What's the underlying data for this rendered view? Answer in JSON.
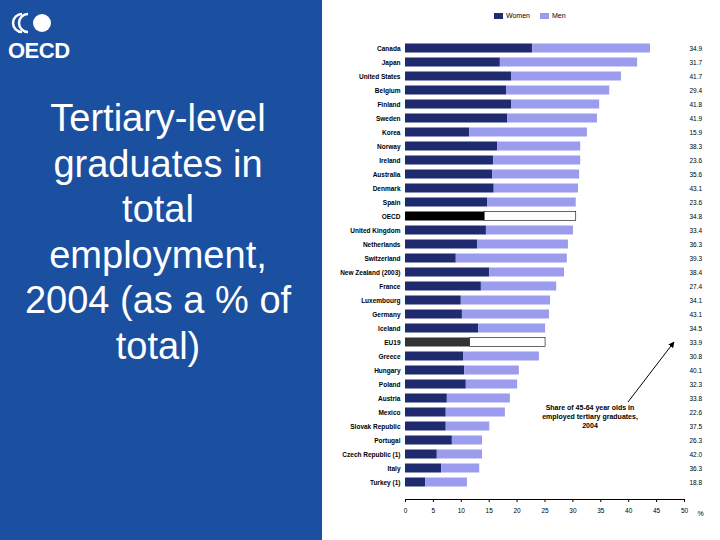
{
  "slide": {
    "logo": "OECD"
  },
  "chart_data": {
    "type": "bar",
    "orientation": "horizontal",
    "stacked": true,
    "title": "Tertiary-level graduates in total employment, 2004 (as a % of total)",
    "categories": [
      "Canada",
      "Japan",
      "United States",
      "Belgium",
      "Finland",
      "Sweden",
      "Korea",
      "Norway",
      "Ireland",
      "Australia",
      "Denmark",
      "Spain",
      "OECD",
      "United Kingdom",
      "Netherlands",
      "Switzerland",
      "New Zealand (2003)",
      "France",
      "Luxembourg",
      "Germany",
      "Iceland",
      "EU19",
      "Greece",
      "Hungary",
      "Poland",
      "Austria",
      "Mexico",
      "Slovak Republic",
      "Portugal",
      "Czech Republic (1)",
      "Italy",
      "Turkey (1)"
    ],
    "series": [
      {
        "name": "Women",
        "color": "#1f2b6e",
        "colors": [
          "#1f2b6e",
          "#1f2b6e",
          "#1f2b6e",
          "#1f2b6e",
          "#1f2b6e",
          "#1f2b6e",
          "#1f2b6e",
          "#1f2b6e",
          "#1f2b6e",
          "#1f2b6e",
          "#1f2b6e",
          "#1f2b6e",
          "#000000",
          "#1f2b6e",
          "#1f2b6e",
          "#1f2b6e",
          "#1f2b6e",
          "#1f2b6e",
          "#1f2b6e",
          "#1f2b6e",
          "#1f2b6e",
          "#333333",
          "#1f2b6e",
          "#1f2b6e",
          "#1f2b6e",
          "#1f2b6e",
          "#1f2b6e",
          "#1f2b6e",
          "#1f2b6e",
          "#1f2b6e",
          "#1f2b6e",
          "#1f2b6e"
        ],
        "values": [
          22.8,
          17.0,
          19.0,
          18.1,
          19.0,
          18.3,
          11.5,
          16.5,
          15.8,
          15.6,
          15.9,
          14.7,
          14.2,
          14.5,
          12.9,
          9.1,
          15.1,
          13.6,
          10.0,
          10.2,
          13.1,
          11.6,
          10.4,
          10.6,
          10.9,
          7.5,
          7.3,
          7.3,
          8.4,
          5.7,
          6.5,
          3.6
        ]
      },
      {
        "name": "Men",
        "color": "#9c9cee",
        "colors": [
          "#9c9cee",
          "#9c9cee",
          "#9c9cee",
          "#9c9cee",
          "#9c9cee",
          "#9c9cee",
          "#9c9cee",
          "#9c9cee",
          "#9c9cee",
          "#9c9cee",
          "#9c9cee",
          "#9c9cee",
          "#ffffff",
          "#9c9cee",
          "#9c9cee",
          "#9c9cee",
          "#9c9cee",
          "#9c9cee",
          "#9c9cee",
          "#9c9cee",
          "#9c9cee",
          "#ffffff",
          "#9c9cee",
          "#9c9cee",
          "#9c9cee",
          "#9c9cee",
          "#9c9cee",
          "#9c9cee",
          "#9c9cee",
          "#9c9cee",
          "#9c9cee",
          "#9c9cee"
        ],
        "values": [
          21.1,
          24.6,
          19.7,
          18.5,
          15.8,
          16.1,
          21.1,
          14.9,
          15.6,
          15.6,
          15.1,
          15.9,
          16.4,
          15.6,
          16.3,
          19.9,
          13.4,
          13.5,
          16.0,
          15.6,
          12.0,
          13.5,
          13.6,
          9.8,
          9.2,
          11.3,
          10.6,
          7.8,
          5.4,
          8.1,
          6.8,
          7.5
        ]
      }
    ],
    "annotation": {
      "text": "Share of 45-64 year olds in employed tertiary graduates, 2004",
      "values": [
        34.9,
        31.7,
        41.7,
        29.4,
        41.8,
        41.9,
        15.9,
        38.3,
        23.6,
        35.6,
        43.1,
        23.6,
        34.8,
        33.4,
        36.3,
        39.3,
        38.4,
        27.4,
        34.1,
        43.1,
        34.5,
        33.9,
        30.8,
        40.1,
        32.3,
        33.8,
        22.6,
        37.5,
        26.3,
        42.0,
        36.3,
        18.8
      ],
      "value_labels": [
        "34.9",
        "31.7",
        "41.7",
        "29.4",
        "41.8",
        "41.9",
        "15.9",
        "38.3",
        "23.6",
        "35.6",
        "43.1",
        "23.6",
        "34.8",
        "33.4",
        "36.3",
        "39.3",
        "38.4",
        "27.4",
        "34.1",
        "43.1",
        "34.5",
        "33.9",
        "30.8",
        "40.1",
        "32.3",
        "33.8",
        "22.6",
        "37.5",
        "26.3",
        "42.0",
        "36.3",
        "18.8"
      ]
    },
    "xlabel": "%",
    "xlim": [
      0,
      50
    ],
    "xticks": [
      0,
      5,
      10,
      15,
      20,
      25,
      30,
      35,
      40,
      45,
      50
    ],
    "grid": false,
    "data_labels": false,
    "legend": "top"
  }
}
